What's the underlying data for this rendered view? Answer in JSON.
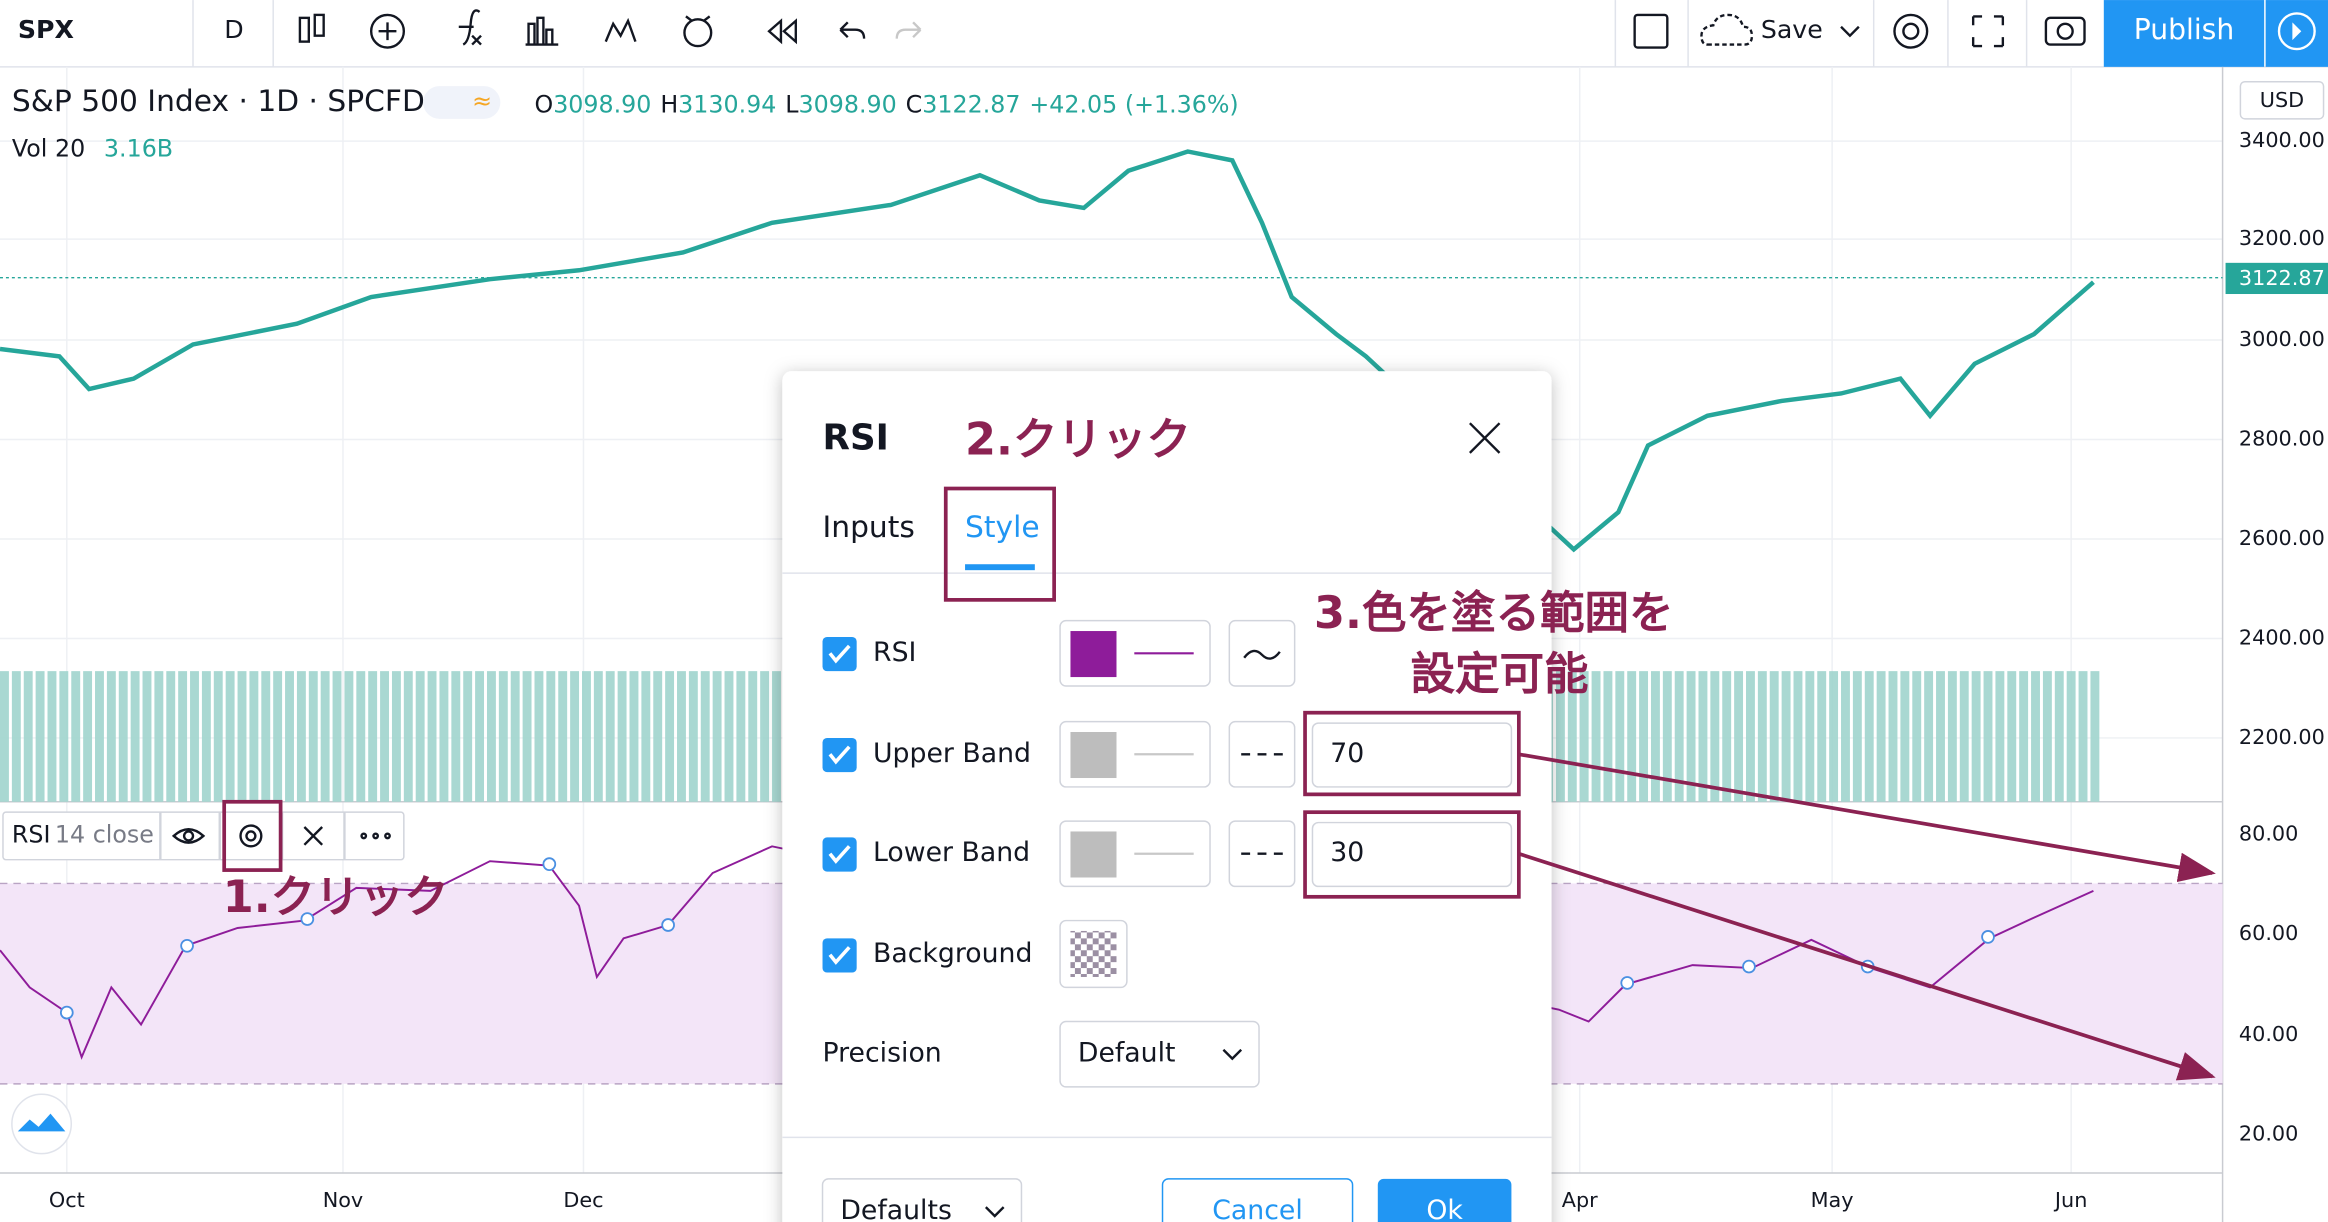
{
  "toolbar": {
    "symbol": "SPX",
    "interval": "D",
    "save": "Save",
    "publish": "Publish"
  },
  "legend": {
    "title": "S&P 500 Index · 1D · SPCFD",
    "open_label": "O",
    "open": "3098.90",
    "high_label": "H",
    "high": "3130.94",
    "low_label": "L",
    "low": "3098.90",
    "close_label": "C",
    "close": "3122.87",
    "change": "+42.05 (+1.36%)",
    "vol_label": "Vol 20",
    "vol": "3.16B"
  },
  "price_axis": {
    "currency": "USD",
    "ticks": [
      "3400.00",
      "3200.00",
      "3000.00",
      "2800.00",
      "2600.00",
      "2400.00",
      "2200.00"
    ],
    "last": "3122.87"
  },
  "rsi_axis": {
    "ticks": [
      "80.00",
      "60.00",
      "40.00",
      "20.00"
    ]
  },
  "time_axis": [
    "Oct",
    "Nov",
    "Dec",
    "Apr",
    "May",
    "Jun"
  ],
  "rsi_legend": {
    "name": "RSI",
    "params": "14 close"
  },
  "dialog": {
    "title": "RSI",
    "tabs": [
      "Inputs",
      "Style"
    ],
    "rows": [
      {
        "label": "RSI"
      },
      {
        "label": "Upper Band",
        "value": "70"
      },
      {
        "label": "Lower Band",
        "value": "30"
      },
      {
        "label": "Background"
      }
    ],
    "precision_label": "Precision",
    "precision": "Default",
    "defaults": "Defaults",
    "cancel": "Cancel",
    "ok": "Ok"
  },
  "annotations": [
    "1.クリック",
    "2.クリック",
    "3.色を塗る範囲を",
    "設定可能"
  ]
}
